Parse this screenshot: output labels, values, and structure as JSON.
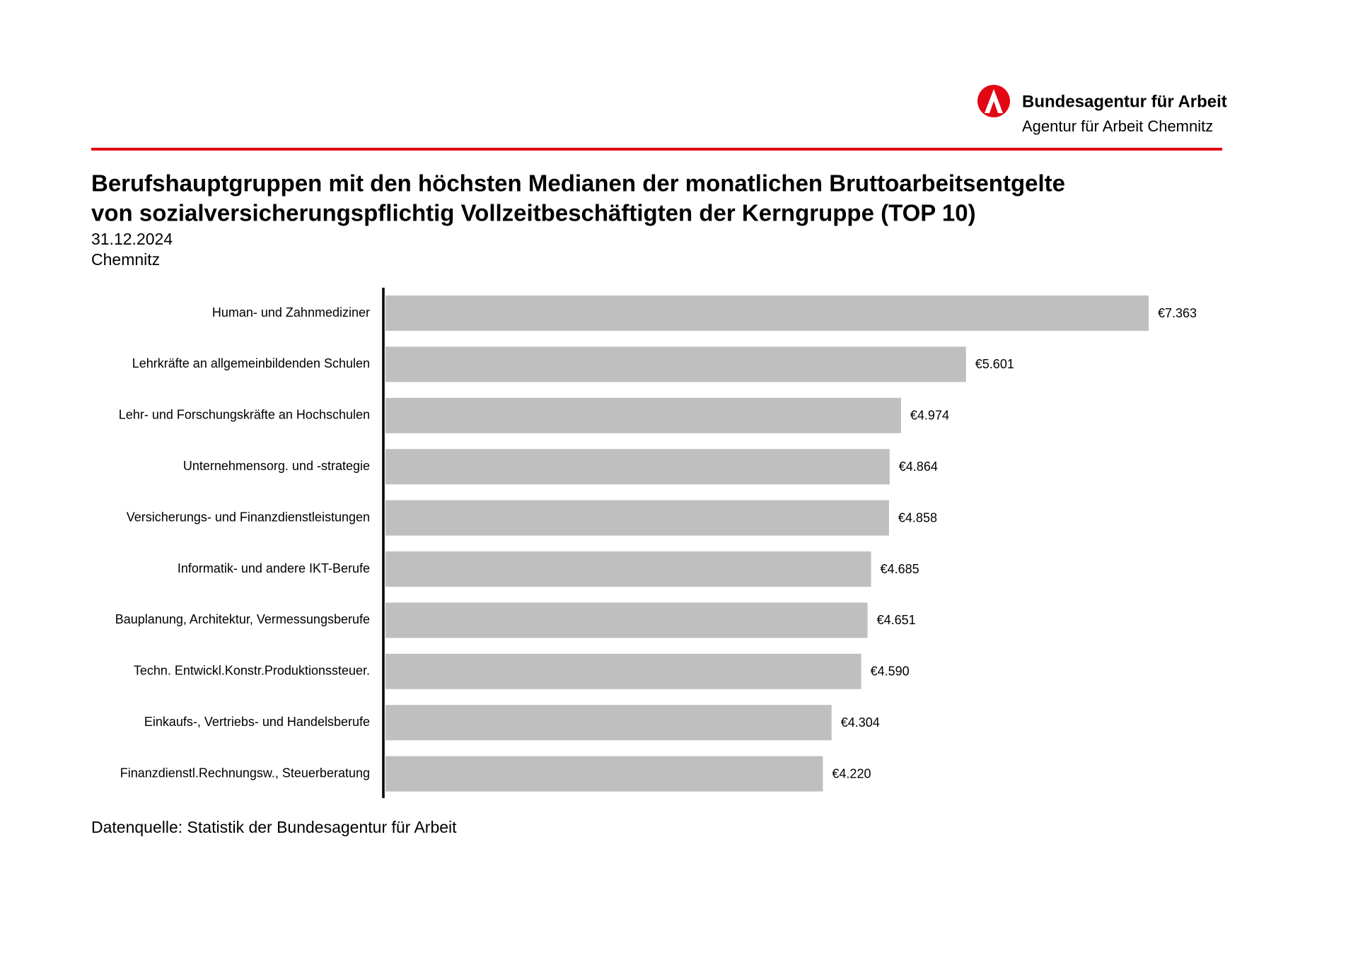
{
  "header": {
    "organization": "Bundesagentur für Arbeit",
    "agency": "Agentur für Arbeit Chemnitz"
  },
  "chart_data": {
    "type": "hbar",
    "title": [
      "Berufshauptgruppen mit den höchsten Medianen der monatlichen Bruttoarbeitsentgelte",
      "von sozialversicherungspflichtig Vollzeitbeschäftigten der Kerngruppe (TOP 10)"
    ],
    "subtitle": [
      "31.12.2024",
      "Chemnitz"
    ],
    "categories": [
      "Human- und Zahnmediziner",
      "Lehrkräfte an allgemeinbildenden Schulen",
      "Lehr- und Forschungskräfte an Hochschulen",
      "Unternehmensorg. und -strategie",
      "Versicherungs- und Finanzdienstleistungen",
      "Informatik- und andere IKT-Berufe",
      "Bauplanung, Architektur, Vermessungsberufe",
      "Techn. Entwickl.Konstr.Produktionssteuer.",
      "Einkaufs-, Vertriebs- und Handelsberufe",
      "Finanzdienstl.Rechnungsw., Steuerberatung"
    ],
    "values": [
      7363,
      5601,
      4974,
      4864,
      4858,
      4685,
      4651,
      4590,
      4304,
      4220
    ],
    "value_labels": [
      "€7.363",
      "€5.601",
      "€4.974",
      "€4.864",
      "€4.858",
      "€4.685",
      "€4.651",
      "€4.590",
      "€4.304",
      "€4.220"
    ],
    "color": "#bfbfbf",
    "source": "Datenquelle: Statistik der Bundesagentur für Arbeit"
  }
}
